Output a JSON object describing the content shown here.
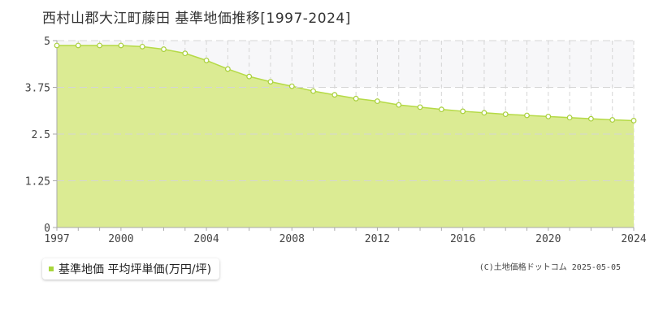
{
  "title": "西村山郡大江町藤田 基準地価推移[1997-2024]",
  "legend": {
    "label": "基準地価 平均坪単価(万円/坪)"
  },
  "copyright": "(C)土地価格ドットコム 2025-05-05",
  "colors": {
    "area_fill": "#dbeb93",
    "line": "#b5da46",
    "marker_stroke": "#a8cf3a",
    "marker_fill": "#ffffff",
    "legend_marker": "#a8d63c",
    "grid": "#d5d5d5",
    "upper_band": "#f7f7f9"
  },
  "chart_data": {
    "type": "area",
    "title": "西村山郡大江町藤田 基準地価推移[1997-2024]",
    "xlabel": "",
    "ylabel": "",
    "x": [
      1997,
      1998,
      1999,
      2000,
      2001,
      2002,
      2003,
      2004,
      2005,
      2006,
      2007,
      2008,
      2009,
      2010,
      2011,
      2012,
      2013,
      2014,
      2015,
      2016,
      2017,
      2018,
      2019,
      2020,
      2021,
      2022,
      2023,
      2024
    ],
    "series": [
      {
        "name": "基準地価 平均坪単価(万円/坪)",
        "values": [
          4.87,
          4.87,
          4.87,
          4.87,
          4.84,
          4.77,
          4.66,
          4.47,
          4.24,
          4.04,
          3.9,
          3.78,
          3.65,
          3.55,
          3.45,
          3.38,
          3.28,
          3.22,
          3.16,
          3.11,
          3.07,
          3.03,
          3.0,
          2.97,
          2.94,
          2.91,
          2.88,
          2.86
        ]
      }
    ],
    "xlim": [
      1997,
      2024
    ],
    "ylim": [
      0,
      5
    ],
    "yticks": [
      0,
      1.25,
      2.5,
      3.75,
      5
    ],
    "ytick_labels": [
      "0",
      "1.25",
      "2.5",
      "3.75",
      "5"
    ],
    "xticks": [
      1997,
      2000,
      2004,
      2008,
      2012,
      2016,
      2020,
      2024
    ],
    "xtick_labels": [
      "1997",
      "2000",
      "2004",
      "2008",
      "2012",
      "2016",
      "2020",
      "2024"
    ],
    "grid": true,
    "legend_position": "bottom-left"
  }
}
